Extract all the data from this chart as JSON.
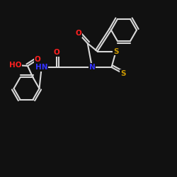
{
  "bg_color": "#111111",
  "bond_color": "#d8d8d8",
  "atom_colors": {
    "O": "#ff2020",
    "N": "#3333ff",
    "S": "#cc9900",
    "C": "#d8d8d8",
    "H": "#d8d8d8"
  }
}
